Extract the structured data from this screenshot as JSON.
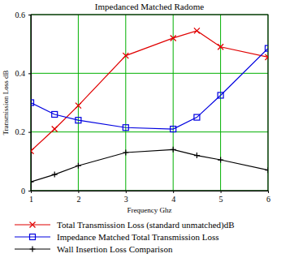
{
  "chart_data": {
    "type": "line",
    "title": "Impedanced Matched Radome",
    "x_label": "Frequency Ghz",
    "y_label": "Transmission Loss dB",
    "x": [
      1,
      1.5,
      2,
      3,
      4,
      4.5,
      5,
      6
    ],
    "series": [
      {
        "name": "Total Transmission Loss (standard unmatched)dB",
        "color": "#e00000",
        "marker": "x",
        "line_style": "solid",
        "values": [
          0.135,
          0.21,
          0.29,
          0.46,
          0.52,
          0.545,
          0.49,
          0.455
        ]
      },
      {
        "name": "Impedance Matched Total Transmission Loss",
        "color": "#0000e0",
        "marker": "square",
        "line_style": "solid",
        "values": [
          0.3,
          0.26,
          0.24,
          0.215,
          0.21,
          0.25,
          0.325,
          0.485
        ]
      },
      {
        "name": "Wall Insertion Loss Comparison",
        "color": "#000000",
        "marker": "plus",
        "line_style": "solid",
        "values": [
          0.03,
          0.055,
          0.085,
          0.13,
          0.14,
          0.12,
          0.105,
          0.07
        ]
      }
    ],
    "xlim": [
      1,
      6
    ],
    "xticks": [
      1,
      2,
      3,
      4,
      5,
      6
    ],
    "ylim": [
      0,
      0.6
    ],
    "yticks": [
      0,
      0.2,
      0.4,
      0.6
    ],
    "grid": true,
    "legend": "bottom"
  }
}
